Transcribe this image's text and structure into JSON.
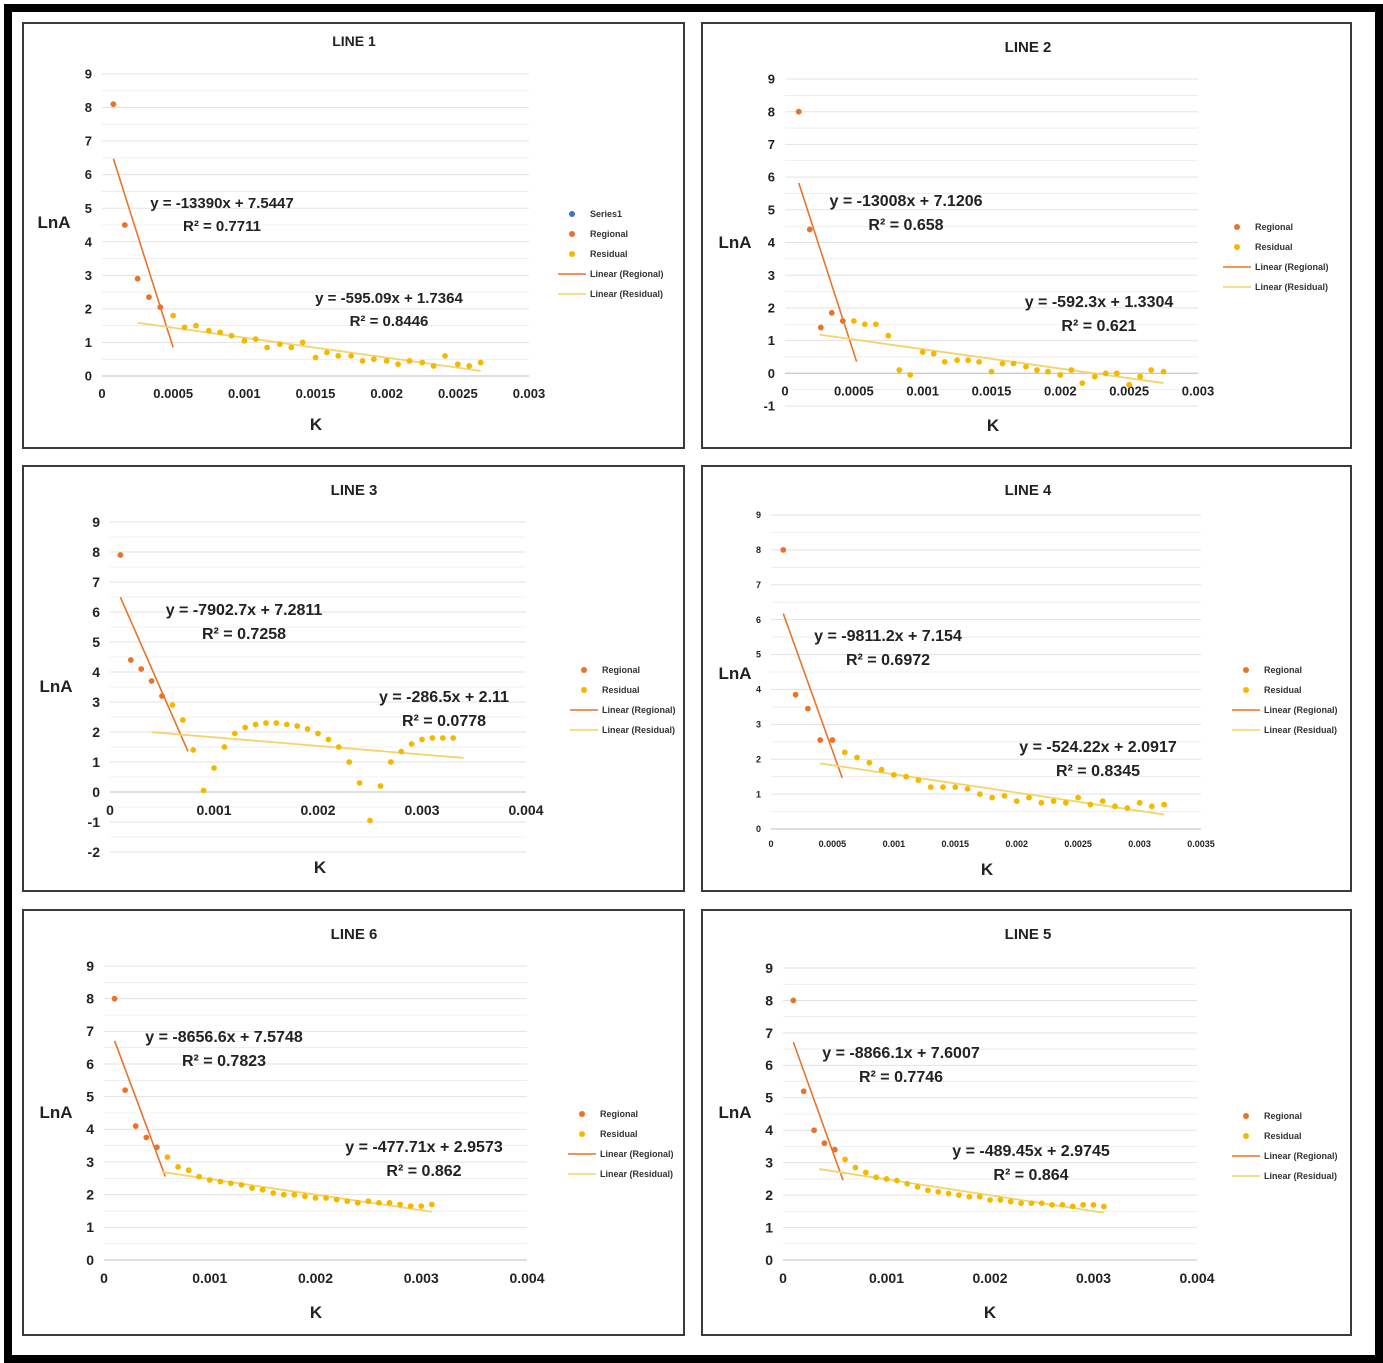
{
  "chart_data": [
    {
      "type": "scatter",
      "title": "LINE 1",
      "xlabel": "K",
      "ylabel": "LnA",
      "xlim": [
        0,
        0.003
      ],
      "ylim": [
        0,
        9
      ],
      "xticks": [
        "0",
        "0.0005",
        "0.001",
        "0.0015",
        "0.002",
        "0.0025",
        "0.003"
      ],
      "yticks": [
        "0",
        "1",
        "2",
        "3",
        "4",
        "5",
        "6",
        "7",
        "8",
        "9"
      ],
      "grid": true,
      "legend_position": "right",
      "legend": [
        "Series1",
        "Regional",
        "Residual",
        "Linear (Regional)",
        "Linear (Residual)"
      ],
      "series": [
        {
          "name": "Regional",
          "color": "#e8742a",
          "x": [
            8e-05,
            0.00016,
            0.00025,
            0.00033,
            0.00041
          ],
          "y": [
            8.1,
            4.5,
            2.9,
            2.35,
            2.05
          ]
        },
        {
          "name": "Residual",
          "color": "#f5b800",
          "x": [
            0.0005,
            0.00058,
            0.00066,
            0.00075,
            0.00083,
            0.00091,
            0.001,
            0.00108,
            0.00116,
            0.00125,
            0.00133,
            0.00141,
            0.0015,
            0.00158,
            0.00166,
            0.00175,
            0.00183,
            0.00191,
            0.002,
            0.00208,
            0.00216,
            0.00225,
            0.00233,
            0.00241,
            0.0025,
            0.00258,
            0.00266
          ],
          "y": [
            1.8,
            1.45,
            1.5,
            1.35,
            1.3,
            1.2,
            1.05,
            1.1,
            0.85,
            0.95,
            0.85,
            1.0,
            0.55,
            0.7,
            0.6,
            0.6,
            0.45,
            0.5,
            0.45,
            0.35,
            0.45,
            0.4,
            0.3,
            0.6,
            0.35,
            0.3,
            0.4
          ]
        }
      ],
      "trendlines": [
        {
          "name": "Linear (Regional)",
          "color": "#e8742a",
          "slope": -13390,
          "intercept": 7.5447,
          "x_range": [
            8e-05,
            0.0005
          ],
          "equation": "y = -13390x + 7.5447",
          "r2": "R² = 0.7711"
        },
        {
          "name": "Linear (Residual)",
          "color": "#f2d46b",
          "slope": -595.09,
          "intercept": 1.7364,
          "x_range": [
            0.00025,
            0.00266
          ],
          "equation": "y = -595.09x + 1.7364",
          "r2": "R² = 0.8446"
        }
      ]
    },
    {
      "type": "scatter",
      "title": "LINE 2",
      "xlabel": "K",
      "ylabel": "LnA",
      "xlim": [
        0,
        0.003
      ],
      "ylim": [
        -1,
        9
      ],
      "xticks": [
        "0",
        "0.0005",
        "0.001",
        "0.0015",
        "0.002",
        "0.0025",
        "0.003"
      ],
      "yticks": [
        "-1",
        "0",
        "1",
        "2",
        "3",
        "4",
        "5",
        "6",
        "7",
        "8",
        "9"
      ],
      "grid": true,
      "legend_position": "right",
      "legend": [
        "Regional",
        "Residual",
        "Linear (Regional)",
        "Linear (Residual)"
      ],
      "series": [
        {
          "name": "Regional",
          "color": "#e8742a",
          "x": [
            0.0001,
            0.00018,
            0.00026,
            0.00034,
            0.00042
          ],
          "y": [
            8.0,
            4.4,
            1.4,
            1.85,
            1.6
          ]
        },
        {
          "name": "Residual",
          "color": "#f5b800",
          "x": [
            0.0005,
            0.00058,
            0.00066,
            0.00075,
            0.00083,
            0.00091,
            0.001,
            0.00108,
            0.00116,
            0.00125,
            0.00133,
            0.00141,
            0.0015,
            0.00158,
            0.00166,
            0.00175,
            0.00183,
            0.00191,
            0.002,
            0.00208,
            0.00216,
            0.00225,
            0.00233,
            0.00241,
            0.0025,
            0.00258,
            0.00266,
            0.00275
          ],
          "y": [
            1.6,
            1.5,
            1.5,
            1.15,
            0.1,
            -0.05,
            0.65,
            0.6,
            0.35,
            0.4,
            0.4,
            0.35,
            0.05,
            0.3,
            0.3,
            0.2,
            0.1,
            0.05,
            -0.05,
            0.1,
            -0.3,
            -0.1,
            0.0,
            0.0,
            -0.35,
            -0.1,
            0.1,
            0.05
          ]
        }
      ],
      "trendlines": [
        {
          "name": "Linear (Regional)",
          "color": "#e8742a",
          "slope": -13008,
          "intercept": 7.1206,
          "x_range": [
            0.0001,
            0.00052
          ],
          "equation": "y = -13008x + 7.1206",
          "r2": "R² = 0.658"
        },
        {
          "name": "Linear (Residual)",
          "color": "#f2d46b",
          "slope": -592.3,
          "intercept": 1.3304,
          "x_range": [
            0.00025,
            0.00275
          ],
          "equation": "y = -592.3x + 1.3304",
          "r2": "R² = 0.621"
        }
      ]
    },
    {
      "type": "scatter",
      "title": "LINE 3",
      "xlabel": "K",
      "ylabel": "LnA",
      "xlim": [
        0,
        0.004
      ],
      "ylim": [
        -2,
        9
      ],
      "xticks": [
        "0",
        "0.001",
        "0.002",
        "0.003",
        "0.004"
      ],
      "yticks": [
        "-2",
        "-1",
        "0",
        "1",
        "2",
        "3",
        "4",
        "5",
        "6",
        "7",
        "8",
        "9"
      ],
      "grid": true,
      "legend_position": "right",
      "legend": [
        "Regional",
        "Residual",
        "Linear (Regional)",
        "Linear (Residual)"
      ],
      "series": [
        {
          "name": "Regional",
          "color": "#e8742a",
          "x": [
            0.0001,
            0.0002,
            0.0003,
            0.0004,
            0.0005
          ],
          "y": [
            7.9,
            4.4,
            4.1,
            3.7,
            3.2
          ]
        },
        {
          "name": "Residual",
          "color": "#f5b800",
          "x": [
            0.0006,
            0.0007,
            0.0008,
            0.0009,
            0.001,
            0.0011,
            0.0012,
            0.0013,
            0.0014,
            0.0015,
            0.0016,
            0.0017,
            0.0018,
            0.0019,
            0.002,
            0.0021,
            0.0022,
            0.0023,
            0.0024,
            0.0025,
            0.0026,
            0.0027,
            0.0028,
            0.0029,
            0.003,
            0.0031,
            0.0032,
            0.0033
          ],
          "y": [
            2.9,
            2.4,
            1.4,
            0.05,
            0.8,
            1.5,
            1.95,
            2.15,
            2.25,
            2.3,
            2.3,
            2.25,
            2.2,
            2.1,
            1.95,
            1.75,
            1.5,
            1.0,
            0.3,
            -0.95,
            0.2,
            1.0,
            1.35,
            1.6,
            1.75,
            1.8,
            1.8,
            1.8
          ]
        }
      ],
      "trendlines": [
        {
          "name": "Linear (Regional)",
          "color": "#e8742a",
          "slope": -7902.7,
          "intercept": 7.2811,
          "x_range": [
            0.0001,
            0.00075
          ],
          "equation": "y = -7902.7x + 7.2811",
          "r2": "R² = 0.7258"
        },
        {
          "name": "Linear (Residual)",
          "color": "#f2d46b",
          "slope": -286.5,
          "intercept": 2.11,
          "x_range": [
            0.0004,
            0.0034
          ],
          "equation": "y = -286.5x + 2.11",
          "r2": "R² = 0.0778"
        }
      ]
    },
    {
      "type": "scatter",
      "title": "LINE 4",
      "xlabel": "K",
      "ylabel": "LnA",
      "xlim": [
        0,
        0.0035
      ],
      "ylim": [
        0,
        9
      ],
      "xticks": [
        "0",
        "0.0005",
        "0.001",
        "0.0015",
        "0.002",
        "0.0025",
        "0.003",
        "0.0035"
      ],
      "yticks": [
        "0",
        "1",
        "2",
        "3",
        "4",
        "5",
        "6",
        "7",
        "8",
        "9"
      ],
      "grid": true,
      "legend_position": "right",
      "legend": [
        "Regional",
        "Residual",
        "Linear (Regional)",
        "Linear (Residual)"
      ],
      "series": [
        {
          "name": "Regional",
          "color": "#e8742a",
          "x": [
            0.0001,
            0.0002,
            0.0003,
            0.0004,
            0.0005
          ],
          "y": [
            8.0,
            3.85,
            3.45,
            2.55,
            2.55
          ]
        },
        {
          "name": "Residual",
          "color": "#f5b800",
          "x": [
            0.0006,
            0.0007,
            0.0008,
            0.0009,
            0.001,
            0.0011,
            0.0012,
            0.0013,
            0.0014,
            0.0015,
            0.0016,
            0.0017,
            0.0018,
            0.0019,
            0.002,
            0.0021,
            0.0022,
            0.0023,
            0.0024,
            0.0025,
            0.0026,
            0.0027,
            0.0028,
            0.0029,
            0.003,
            0.0031,
            0.0032
          ],
          "y": [
            2.2,
            2.05,
            1.9,
            1.7,
            1.55,
            1.5,
            1.4,
            1.2,
            1.2,
            1.2,
            1.15,
            1.0,
            0.9,
            0.95,
            0.8,
            0.9,
            0.75,
            0.8,
            0.75,
            0.9,
            0.7,
            0.8,
            0.65,
            0.6,
            0.75,
            0.65,
            0.7
          ]
        }
      ],
      "trendlines": [
        {
          "name": "Linear (Regional)",
          "color": "#e8742a",
          "slope": -9811.2,
          "intercept": 7.154,
          "x_range": [
            0.0001,
            0.00058
          ],
          "equation": "y = -9811.2x + 7.154",
          "r2": "R² = 0.6972"
        },
        {
          "name": "Linear (Residual)",
          "color": "#f2d46b",
          "slope": -524.22,
          "intercept": 2.0917,
          "x_range": [
            0.0004,
            0.0032
          ],
          "equation": "y = -524.22x + 2.0917",
          "r2": "R² = 0.8345"
        }
      ]
    },
    {
      "type": "scatter",
      "title": "LINE 6",
      "xlabel": "K",
      "ylabel": "LnA",
      "xlim": [
        0,
        0.004
      ],
      "ylim": [
        0,
        9
      ],
      "xticks": [
        "0",
        "0.001",
        "0.002",
        "0.003",
        "0.004"
      ],
      "yticks": [
        "0",
        "1",
        "2",
        "3",
        "4",
        "5",
        "6",
        "7",
        "8",
        "9"
      ],
      "grid": true,
      "legend_position": "right",
      "legend": [
        "Regional",
        "Residual",
        "Linear (Regional)",
        "Linear (Residual)"
      ],
      "series": [
        {
          "name": "Regional",
          "color": "#e8742a",
          "x": [
            0.0001,
            0.0002,
            0.0003,
            0.0004,
            0.0005
          ],
          "y": [
            8.0,
            5.2,
            4.1,
            3.75,
            3.45
          ]
        },
        {
          "name": "Residual",
          "color": "#f5b800",
          "x": [
            0.0006,
            0.0007,
            0.0008,
            0.0009,
            0.001,
            0.0011,
            0.0012,
            0.0013,
            0.0014,
            0.0015,
            0.0016,
            0.0017,
            0.0018,
            0.0019,
            0.002,
            0.0021,
            0.0022,
            0.0023,
            0.0024,
            0.0025,
            0.0026,
            0.0027,
            0.0028,
            0.0029,
            0.003,
            0.0031
          ],
          "y": [
            3.15,
            2.85,
            2.75,
            2.55,
            2.45,
            2.4,
            2.35,
            2.3,
            2.2,
            2.15,
            2.05,
            2.0,
            2.0,
            1.95,
            1.9,
            1.9,
            1.85,
            1.8,
            1.75,
            1.8,
            1.75,
            1.75,
            1.7,
            1.65,
            1.65,
            1.7
          ]
        }
      ],
      "trendlines": [
        {
          "name": "Linear (Regional)",
          "color": "#e8742a",
          "slope": -8656.6,
          "intercept": 7.5748,
          "x_range": [
            0.0001,
            0.00058
          ],
          "equation": "y = -8656.6x + 7.5748",
          "r2": "R² = 0.7823"
        },
        {
          "name": "Linear (Residual)",
          "color": "#f2d46b",
          "slope": -477.71,
          "intercept": 2.9573,
          "x_range": [
            0.00055,
            0.0031
          ],
          "equation": "y = -477.71x + 2.9573",
          "r2": "R² = 0.862"
        }
      ]
    },
    {
      "type": "scatter",
      "title": "LINE 5",
      "xlabel": "K",
      "ylabel": "LnA",
      "xlim": [
        0,
        0.004
      ],
      "ylim": [
        0,
        9
      ],
      "xticks": [
        "0",
        "0.001",
        "0.002",
        "0.003",
        "0.004"
      ],
      "yticks": [
        "0",
        "1",
        "2",
        "3",
        "4",
        "5",
        "6",
        "7",
        "8",
        "9"
      ],
      "grid": true,
      "legend_position": "right",
      "legend": [
        "Regional",
        "Residual",
        "Linear (Regional)",
        "Linear (Residual)"
      ],
      "series": [
        {
          "name": "Regional",
          "color": "#e8742a",
          "x": [
            0.0001,
            0.0002,
            0.0003,
            0.0004,
            0.0005
          ],
          "y": [
            8.0,
            5.2,
            4.0,
            3.6,
            3.4
          ]
        },
        {
          "name": "Residual",
          "color": "#f5b800",
          "x": [
            0.0006,
            0.0007,
            0.0008,
            0.0009,
            0.001,
            0.0011,
            0.0012,
            0.0013,
            0.0014,
            0.0015,
            0.0016,
            0.0017,
            0.0018,
            0.0019,
            0.002,
            0.0021,
            0.0022,
            0.0023,
            0.0024,
            0.0025,
            0.0026,
            0.0027,
            0.0028,
            0.0029,
            0.003,
            0.0031
          ],
          "y": [
            3.1,
            2.85,
            2.7,
            2.55,
            2.5,
            2.45,
            2.35,
            2.25,
            2.15,
            2.1,
            2.05,
            2.0,
            1.95,
            1.95,
            1.85,
            1.85,
            1.8,
            1.75,
            1.75,
            1.75,
            1.7,
            1.7,
            1.65,
            1.7,
            1.7,
            1.65
          ]
        }
      ],
      "trendlines": [
        {
          "name": "Linear (Regional)",
          "color": "#e8742a",
          "slope": -8866.1,
          "intercept": 7.6007,
          "x_range": [
            0.0001,
            0.00058
          ],
          "equation": "y = -8866.1x + 7.6007",
          "r2": "R² = 0.7746"
        },
        {
          "name": "Linear (Residual)",
          "color": "#f2d46b",
          "slope": -489.45,
          "intercept": 2.9745,
          "x_range": [
            0.00035,
            0.0031
          ],
          "equation": "y = -489.45x + 2.9745",
          "r2": "R² = 0.864"
        }
      ]
    }
  ],
  "colors": {
    "series1": "#4472c4",
    "regional": "#e8742a",
    "residual": "#f5b800",
    "trend_regional": "#e8742a",
    "trend_residual": "#f2d46b",
    "grid": "#e3e3e3",
    "frame": "#000000"
  }
}
